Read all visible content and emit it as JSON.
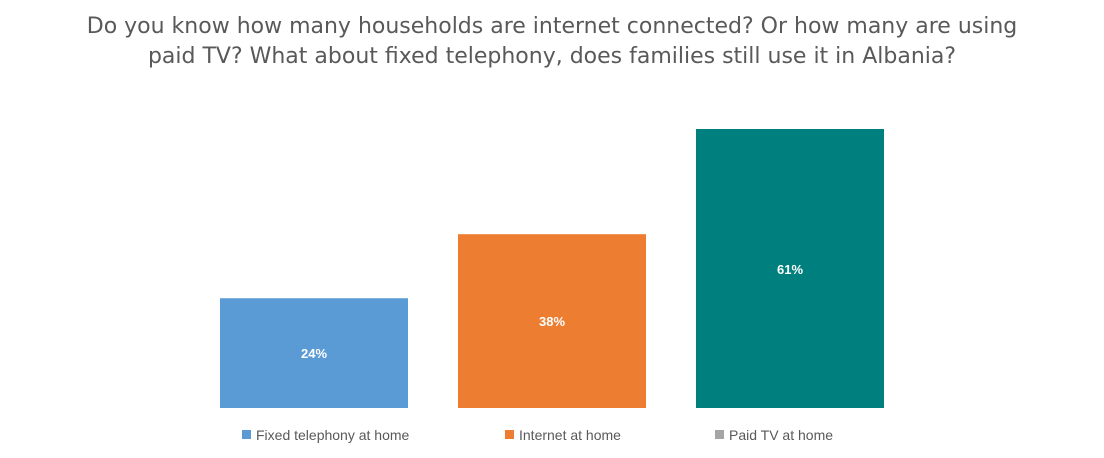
{
  "chart_data": {
    "type": "bar",
    "title_lines": [
      "Do you know how many households are internet connected? Or how many are using",
      "paid TV? What about fixed telephony, does families still use it in Albania?"
    ],
    "categories": [
      "Fixed telephony at home",
      "Internet at home",
      "Paid TV at home"
    ],
    "values": [
      24,
      38,
      61
    ],
    "data_labels": [
      "24%",
      "38%",
      "61%"
    ],
    "bar_colors": [
      "#5B9BD5",
      "#ED7D31",
      "#007F7F"
    ],
    "legend": {
      "placement": "bottom",
      "entries": [
        {
          "label": "Fixed telephony at home",
          "color": "#5B9BD5"
        },
        {
          "label": "Internet at home",
          "color": "#ED7D31"
        },
        {
          "label": "Paid TV at home",
          "color": "#A5A5A5"
        }
      ]
    },
    "unit": "%",
    "ylim": [
      0,
      61
    ],
    "grid": false,
    "axes_visible": false
  }
}
